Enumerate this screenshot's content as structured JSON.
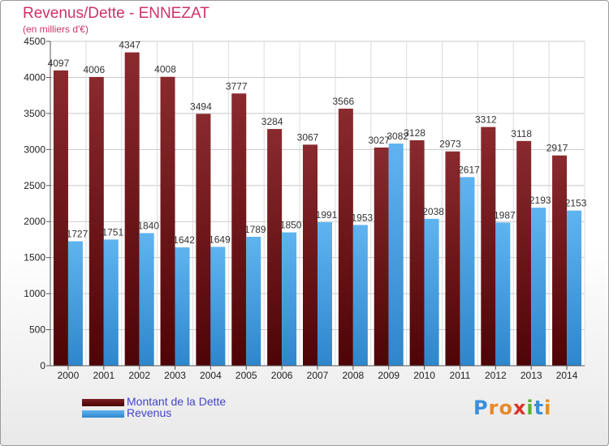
{
  "header": {
    "title": "Revenus/Dette - ENNEZAT",
    "subtitle": "(en milliers d'€)"
  },
  "chart_data": {
    "type": "bar",
    "categories": [
      "2000",
      "2001",
      "2002",
      "2003",
      "2004",
      "2005",
      "2006",
      "2007",
      "2008",
      "2009",
      "2010",
      "2011",
      "2012",
      "2013",
      "2014"
    ],
    "series": [
      {
        "name": "Montant de la Dette",
        "color": "#7a1e22",
        "values": [
          4097,
          4006,
          4347,
          4008,
          3494,
          3777,
          3284,
          3067,
          3566,
          3027,
          3128,
          2973,
          3312,
          3118,
          2917
        ]
      },
      {
        "name": "Revenus",
        "color": "#4ea6e8",
        "values": [
          1727,
          1751,
          1840,
          1642,
          1649,
          1789,
          1850,
          1991,
          1953,
          3082,
          2038,
          2617,
          1987,
          2193,
          2153
        ]
      }
    ],
    "ylim": [
      0,
      4500
    ],
    "yticks": [
      0,
      500,
      1000,
      1500,
      2000,
      2500,
      3000,
      3500,
      4000,
      4500
    ],
    "grid": true,
    "legend": "bottom-left"
  },
  "legend": {
    "items": [
      {
        "label": "Montant de la Dette",
        "color": "#5a0d10"
      },
      {
        "label": "Revenus",
        "color": "#4ea6e8"
      }
    ]
  },
  "logo": {
    "letters": [
      "P",
      "r",
      "o",
      "x",
      "i",
      "t",
      "i"
    ],
    "colors": [
      "#3a8fd8",
      "#e8892a",
      "#e8892a",
      "#d8342a",
      "#5ab030",
      "#3a8fd8",
      "#e8892a"
    ]
  }
}
